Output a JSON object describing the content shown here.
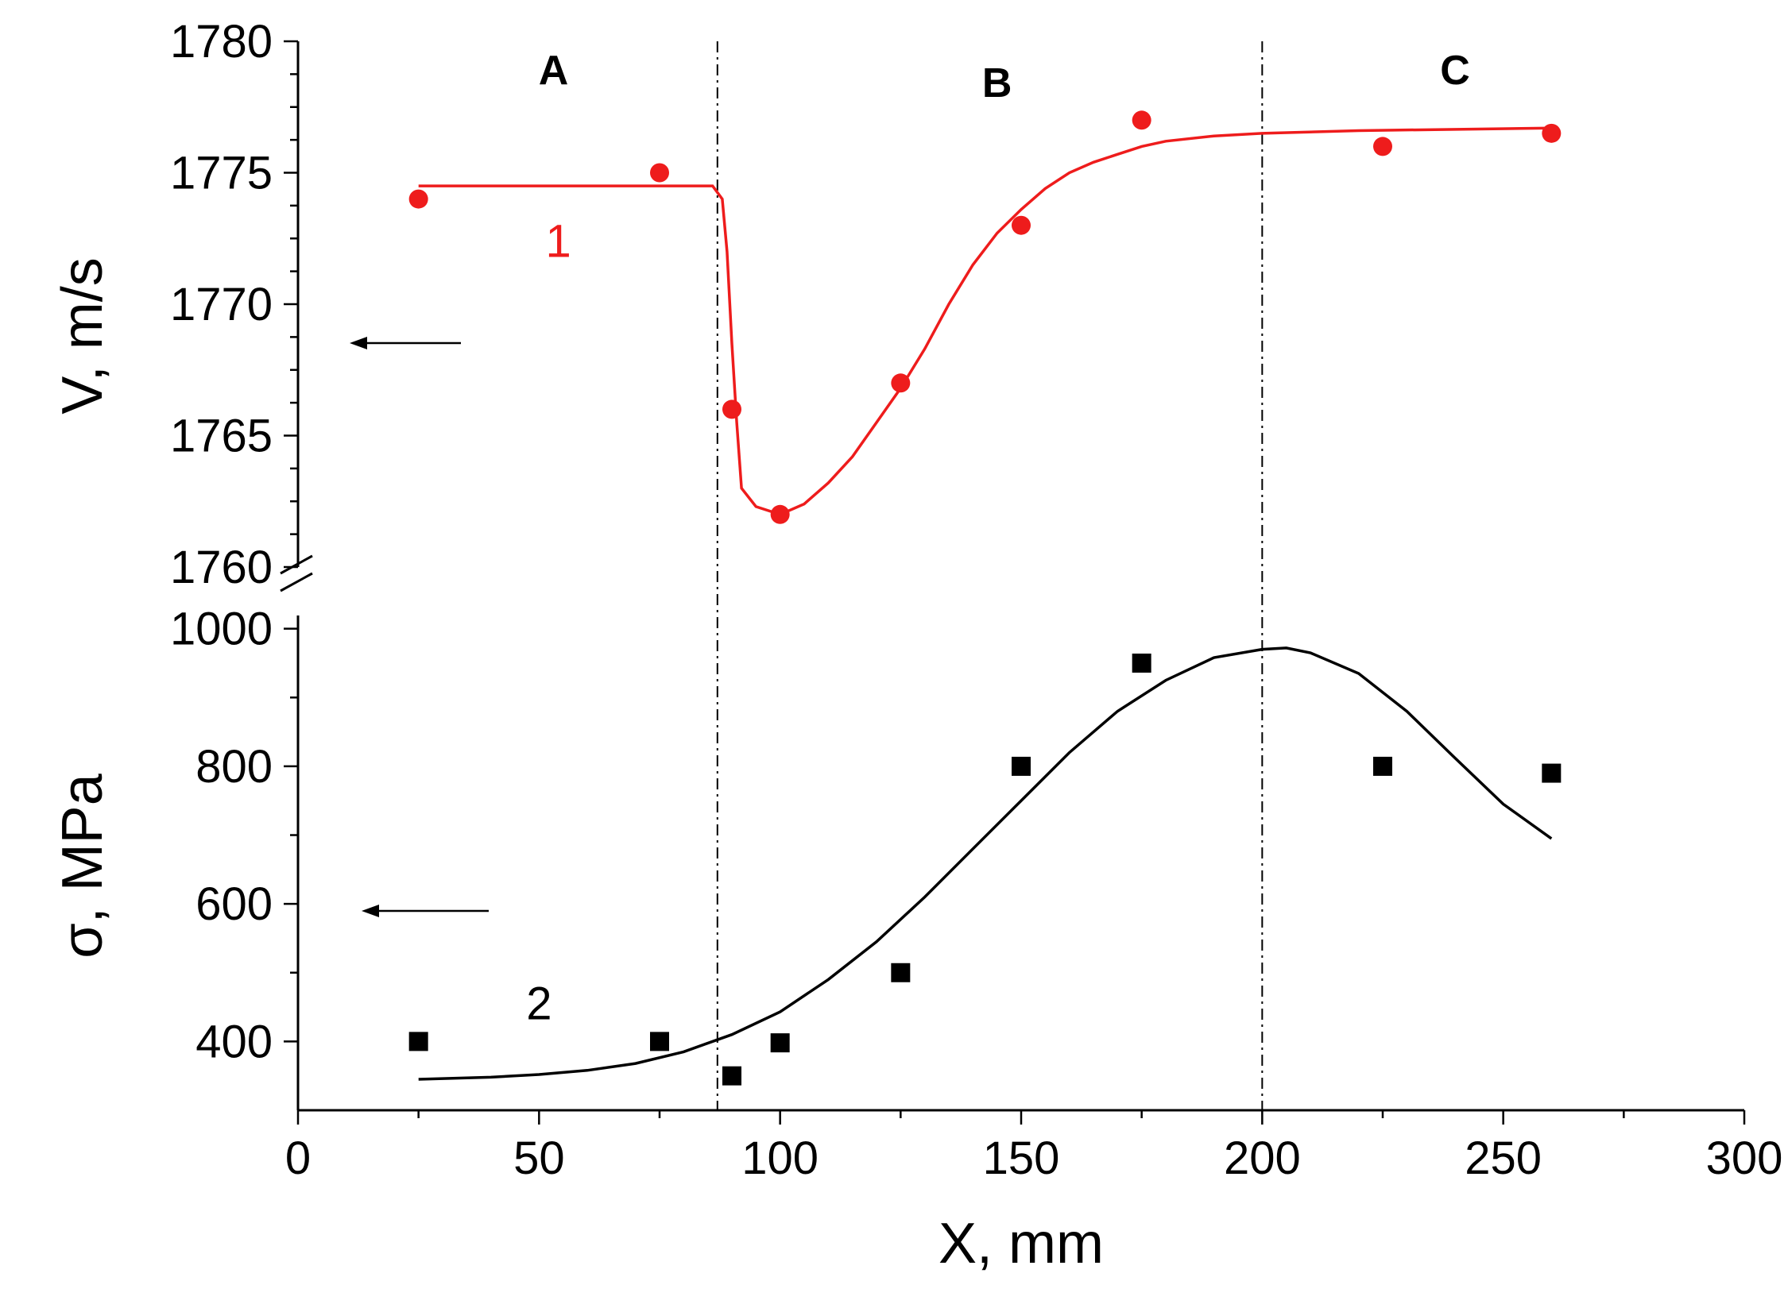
{
  "chart_data": {
    "type": "scatter",
    "x_axis": {
      "label": "X, mm",
      "range": [
        0,
        300
      ],
      "ticks": [
        0,
        50,
        100,
        150,
        200,
        250,
        300
      ]
    },
    "upper_panel": {
      "ylabel": "V, m/s",
      "ylim": [
        1760,
        1780
      ],
      "ticks": [
        1760,
        1765,
        1770,
        1775,
        1780
      ],
      "series": {
        "name": "1",
        "color": "#ee1c1c",
        "marker": "circle",
        "points": {
          "x": [
            25,
            75,
            90,
            100,
            125,
            150,
            175,
            225,
            260
          ],
          "y": [
            1774,
            1775,
            1766,
            1762,
            1767,
            1773,
            1777,
            1776,
            1776.5
          ]
        },
        "fit": {
          "x": [
            25,
            86,
            88,
            89,
            90,
            91,
            92,
            95,
            100,
            105,
            110,
            115,
            120,
            125,
            130,
            135,
            140,
            145,
            150,
            155,
            160,
            165,
            170,
            175,
            180,
            190,
            200,
            220,
            260
          ],
          "y": [
            1774.5,
            1774.5,
            1774.0,
            1772.0,
            1768.5,
            1765.5,
            1763.0,
            1762.3,
            1762.0,
            1762.4,
            1763.2,
            1764.2,
            1765.5,
            1766.8,
            1768.3,
            1770.0,
            1771.5,
            1772.7,
            1773.6,
            1774.4,
            1775.0,
            1775.4,
            1775.7,
            1776.0,
            1776.2,
            1776.4,
            1776.5,
            1776.6,
            1776.7
          ]
        }
      }
    },
    "lower_panel": {
      "ylabel": "σ, MPa",
      "ylim": [
        300,
        1010
      ],
      "ticks": [
        400,
        600,
        800,
        1000
      ],
      "series": {
        "name": "2",
        "color": "#000000",
        "marker": "square",
        "points": {
          "x": [
            25,
            75,
            90,
            100,
            125,
            150,
            175,
            225,
            260
          ],
          "y": [
            400,
            400,
            350,
            398,
            500,
            800,
            950,
            800,
            790
          ]
        },
        "fit": {
          "x": [
            25,
            40,
            50,
            60,
            70,
            80,
            90,
            100,
            110,
            120,
            130,
            140,
            150,
            160,
            170,
            180,
            190,
            200,
            205,
            210,
            220,
            230,
            240,
            250,
            260
          ],
          "y": [
            345,
            348,
            352,
            358,
            368,
            385,
            410,
            443,
            490,
            545,
            610,
            680,
            750,
            820,
            880,
            925,
            958,
            970,
            972,
            965,
            935,
            880,
            812,
            745,
            695
          ]
        }
      }
    },
    "region_boundaries_x": [
      87,
      200
    ],
    "regions": [
      {
        "label": "A",
        "x": 53
      },
      {
        "label": "B",
        "x": 145
      },
      {
        "label": "C",
        "x": 240
      }
    ]
  }
}
